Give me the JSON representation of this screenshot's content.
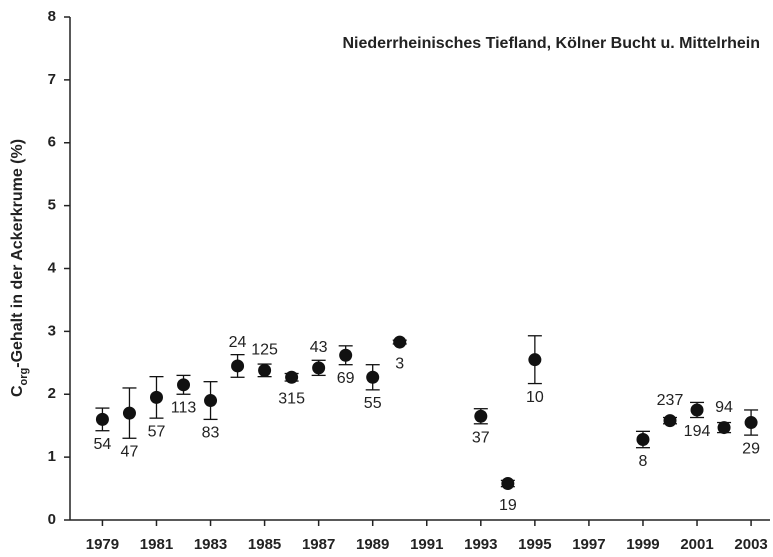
{
  "chart_data": {
    "type": "scatter",
    "annotation": "Niederrheinisches Tiefland, Kölner Bucht u. Mittelrhein",
    "ylabel": "C",
    "ylabel_sub": "org",
    "ylabel_rest": "-Gehalt in der Ackerkrume (%)",
    "x": [
      1979,
      1980,
      1981,
      1982,
      1983,
      1984,
      1985,
      1986,
      1987,
      1988,
      1989,
      1990,
      1993,
      1994,
      1995,
      1999,
      2000,
      2001,
      2002,
      2003
    ],
    "values": [
      1.6,
      1.7,
      1.95,
      2.15,
      1.9,
      2.45,
      2.38,
      2.27,
      2.42,
      2.62,
      2.27,
      2.83,
      1.65,
      0.58,
      2.55,
      1.28,
      1.58,
      1.75,
      1.47,
      1.55
    ],
    "errors": [
      0.18,
      0.4,
      0.33,
      0.15,
      0.3,
      0.18,
      0.1,
      0.06,
      0.12,
      0.15,
      0.2,
      0.03,
      0.12,
      0.05,
      0.38,
      0.13,
      0.05,
      0.12,
      0.08,
      0.2
    ],
    "n": [
      54,
      47,
      57,
      113,
      83,
      24,
      125,
      315,
      43,
      69,
      55,
      3,
      37,
      19,
      10,
      8,
      237,
      194,
      94,
      29
    ],
    "color": "#111111",
    "xlim": [
      1977.8,
      2003.7
    ],
    "xticks": [
      1979,
      1981,
      1983,
      1985,
      1987,
      1989,
      1991,
      1993,
      1995,
      1997,
      1999,
      2001,
      2003
    ],
    "ylim": [
      0,
      8
    ],
    "yticks": [
      0,
      1,
      2,
      3,
      4,
      5,
      6,
      7,
      8
    ]
  }
}
